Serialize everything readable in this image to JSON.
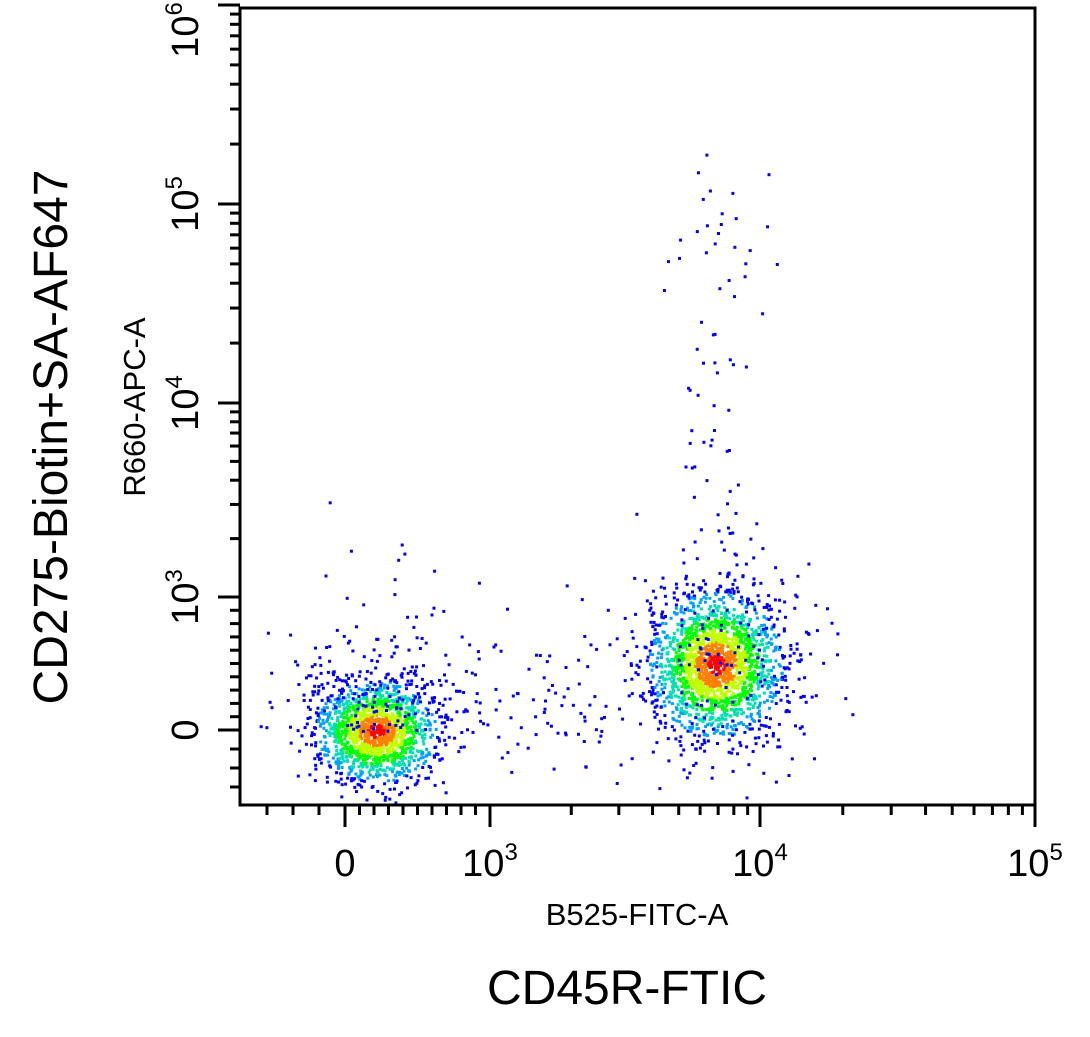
{
  "chart_data": {
    "type": "scatter",
    "subtype": "flow-cytometry-density-dot-plot",
    "title": "",
    "xlabel": "B525-FITC-A",
    "ylabel": "R660-APC-A",
    "outer_xlabel": "CD45R-FTIC",
    "outer_ylabel": "CD275-Biotin+SA-AF647",
    "x_scale": "biexponential",
    "y_scale": "biexponential",
    "xlim": [
      -400,
      100000
    ],
    "ylim": [
      -400,
      1000000
    ],
    "x_ticks": [
      {
        "value": 0,
        "base": "0",
        "exp": ""
      },
      {
        "value": 1000,
        "base": "10",
        "exp": "3"
      },
      {
        "value": 10000,
        "base": "10",
        "exp": "4"
      },
      {
        "value": 100000,
        "base": "10",
        "exp": "5"
      }
    ],
    "y_ticks": [
      {
        "value": 0,
        "base": "0",
        "exp": ""
      },
      {
        "value": 1000,
        "base": "10",
        "exp": "3"
      },
      {
        "value": 10000,
        "base": "10",
        "exp": "4"
      },
      {
        "value": 100000,
        "base": "10",
        "exp": "5"
      },
      {
        "value": 1000000,
        "base": "10",
        "exp": "6"
      }
    ],
    "density_colors": [
      "#0000ff",
      "#00a0ff",
      "#00e0b0",
      "#00ff00",
      "#c0ff00",
      "#ff8000",
      "#ff0000"
    ],
    "populations": [
      {
        "name": "",
        "center_x": 210,
        "center_y": 0,
        "relative_size": 0.45
      },
      {
        "name": "",
        "center_x": 6800,
        "center_y": 500,
        "relative_size": 0.55
      }
    ],
    "grid": false,
    "legend": "none"
  }
}
